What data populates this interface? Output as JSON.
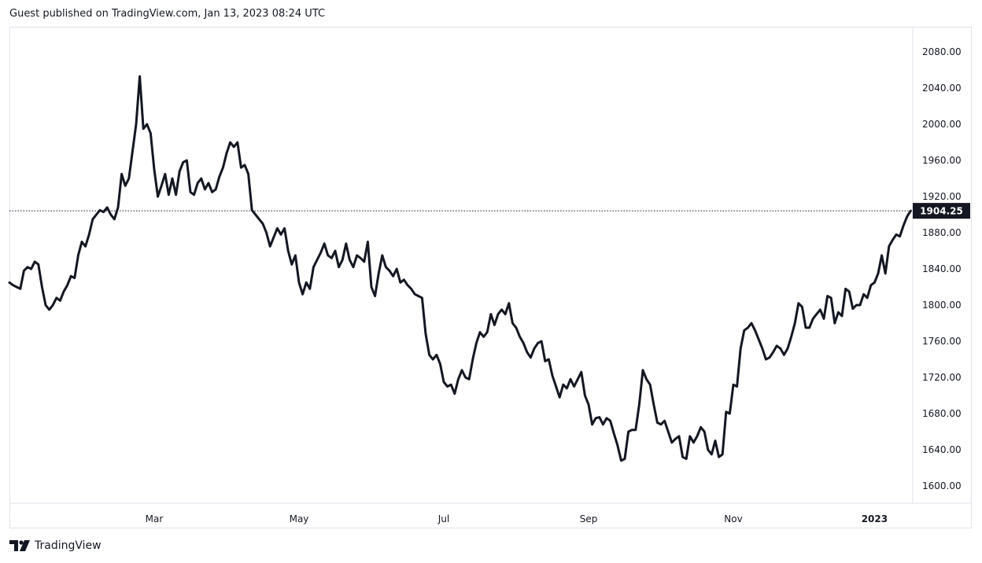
{
  "header": {
    "text": "Guest published on TradingView.com, Jan 13, 2023 08:24 UTC"
  },
  "footer": {
    "brand": "TradingView",
    "logo_icon": "tradingview-logo-icon"
  },
  "colors": {
    "line": "#131722",
    "price_label_bg": "#131722",
    "price_label_text": "#ffffff",
    "border": "#e0e3eb"
  },
  "chart_data": {
    "type": "line",
    "grid": false,
    "legend": "none",
    "ylim": [
      1585,
      2108
    ],
    "y_ticks": [
      "2080.00",
      "2040.00",
      "2000.00",
      "1960.00",
      "1920.00",
      "1880.00",
      "1840.00",
      "1800.00",
      "1760.00",
      "1720.00",
      "1680.00",
      "1640.00",
      "1600.00"
    ],
    "x_ticks": [
      {
        "label": "Mar",
        "index": 40,
        "bold": false
      },
      {
        "label": "May",
        "index": 80,
        "bold": false
      },
      {
        "label": "Jul",
        "index": 120,
        "bold": false
      },
      {
        "label": "Sep",
        "index": 160,
        "bold": false
      },
      {
        "label": "Nov",
        "index": 200,
        "bold": false
      },
      {
        "label": "2023",
        "index": 239,
        "bold": true
      }
    ],
    "last_value": 1904.25,
    "last_value_label": "1904.25",
    "values": [
      1825,
      1822,
      1820,
      1818,
      1838,
      1842,
      1840,
      1848,
      1845,
      1820,
      1800,
      1795,
      1800,
      1808,
      1805,
      1815,
      1822,
      1832,
      1830,
      1855,
      1870,
      1865,
      1878,
      1895,
      1900,
      1905,
      1903,
      1908,
      1900,
      1895,
      1908,
      1945,
      1932,
      1940,
      1970,
      2000,
      2053,
      1995,
      2000,
      1990,
      1950,
      1920,
      1932,
      1945,
      1922,
      1940,
      1922,
      1948,
      1958,
      1960,
      1925,
      1922,
      1935,
      1940,
      1928,
      1935,
      1925,
      1928,
      1942,
      1952,
      1968,
      1980,
      1975,
      1980,
      1952,
      1955,
      1945,
      1905,
      1900,
      1895,
      1890,
      1880,
      1865,
      1875,
      1885,
      1878,
      1885,
      1860,
      1845,
      1855,
      1825,
      1812,
      1825,
      1818,
      1842,
      1850,
      1858,
      1868,
      1855,
      1852,
      1860,
      1842,
      1850,
      1868,
      1850,
      1842,
      1855,
      1852,
      1848,
      1870,
      1820,
      1810,
      1835,
      1855,
      1842,
      1838,
      1832,
      1840,
      1825,
      1828,
      1822,
      1818,
      1812,
      1810,
      1808,
      1768,
      1745,
      1740,
      1745,
      1735,
      1715,
      1710,
      1712,
      1702,
      1718,
      1728,
      1720,
      1718,
      1740,
      1758,
      1770,
      1765,
      1770,
      1790,
      1778,
      1790,
      1795,
      1790,
      1802,
      1780,
      1775,
      1765,
      1758,
      1748,
      1742,
      1752,
      1758,
      1760,
      1738,
      1740,
      1722,
      1710,
      1698,
      1712,
      1708,
      1718,
      1710,
      1718,
      1726,
      1700,
      1690,
      1668,
      1675,
      1676,
      1668,
      1675,
      1672,
      1658,
      1645,
      1628,
      1630,
      1660,
      1662,
      1662,
      1690,
      1728,
      1718,
      1712,
      1690,
      1670,
      1668,
      1672,
      1660,
      1648,
      1652,
      1655,
      1632,
      1630,
      1655,
      1648,
      1655,
      1665,
      1660,
      1640,
      1635,
      1650,
      1632,
      1635,
      1682,
      1680,
      1712,
      1710,
      1752,
      1772,
      1775,
      1780,
      1772,
      1762,
      1752,
      1740,
      1742,
      1748,
      1755,
      1752,
      1745,
      1752,
      1765,
      1780,
      1802,
      1798,
      1775,
      1775,
      1785,
      1790,
      1795,
      1785,
      1810,
      1808,
      1780,
      1792,
      1788,
      1818,
      1815,
      1796,
      1800,
      1800,
      1812,
      1808,
      1822,
      1825,
      1835,
      1855,
      1835,
      1865,
      1872,
      1878,
      1876,
      1888,
      1898,
      1904.25
    ]
  }
}
